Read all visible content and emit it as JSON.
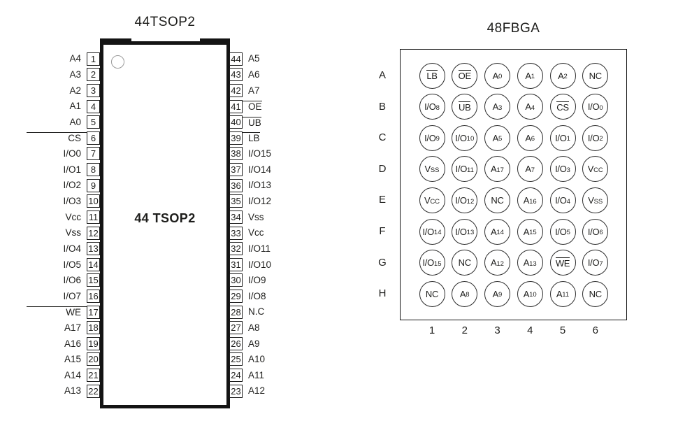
{
  "colors": {
    "line": "#141414",
    "text": "#1d1d1b",
    "pin1_indicator": "#9a9a9a",
    "background": "#ffffff"
  },
  "tsop": {
    "title": "44TSOP2",
    "center_label": "44 TSOP2",
    "left_pins": [
      {
        "num": "1",
        "label": "A4",
        "ov": false
      },
      {
        "num": "2",
        "label": "A3",
        "ov": false
      },
      {
        "num": "3",
        "label": "A2",
        "ov": false
      },
      {
        "num": "4",
        "label": "A1",
        "ov": false
      },
      {
        "num": "5",
        "label": "A0",
        "ov": false
      },
      {
        "num": "6",
        "label": "CS",
        "ov": true
      },
      {
        "num": "7",
        "label": "I/O0",
        "ov": false
      },
      {
        "num": "8",
        "label": "I/O1",
        "ov": false
      },
      {
        "num": "9",
        "label": "I/O2",
        "ov": false
      },
      {
        "num": "10",
        "label": "I/O3",
        "ov": false
      },
      {
        "num": "11",
        "label": "Vcc",
        "ov": false
      },
      {
        "num": "12",
        "label": "Vss",
        "ov": false
      },
      {
        "num": "13",
        "label": "I/O4",
        "ov": false
      },
      {
        "num": "14",
        "label": "I/O5",
        "ov": false
      },
      {
        "num": "15",
        "label": "I/O6",
        "ov": false
      },
      {
        "num": "16",
        "label": "I/O7",
        "ov": false
      },
      {
        "num": "17",
        "label": "WE",
        "ov": true
      },
      {
        "num": "18",
        "label": "A17",
        "ov": false
      },
      {
        "num": "19",
        "label": "A16",
        "ov": false
      },
      {
        "num": "20",
        "label": "A15",
        "ov": false
      },
      {
        "num": "21",
        "label": "A14",
        "ov": false
      },
      {
        "num": "22",
        "label": "A13",
        "ov": false
      }
    ],
    "right_pins": [
      {
        "num": "44",
        "label": "A5",
        "ov": false
      },
      {
        "num": "43",
        "label": "A6",
        "ov": false
      },
      {
        "num": "42",
        "label": "A7",
        "ov": false
      },
      {
        "num": "41",
        "label": "OE",
        "ov": true
      },
      {
        "num": "40",
        "label": "UB",
        "ov": true
      },
      {
        "num": "39",
        "label": "LB",
        "ov": true
      },
      {
        "num": "38",
        "label": "I/O15",
        "ov": false
      },
      {
        "num": "37",
        "label": "I/O14",
        "ov": false
      },
      {
        "num": "36",
        "label": "I/O13",
        "ov": false
      },
      {
        "num": "35",
        "label": "I/O12",
        "ov": false
      },
      {
        "num": "34",
        "label": "Vss",
        "ov": false
      },
      {
        "num": "33",
        "label": "Vcc",
        "ov": false
      },
      {
        "num": "32",
        "label": "I/O11",
        "ov": false
      },
      {
        "num": "31",
        "label": "I/O10",
        "ov": false
      },
      {
        "num": "30",
        "label": "I/O9",
        "ov": false
      },
      {
        "num": "29",
        "label": "I/O8",
        "ov": false
      },
      {
        "num": "28",
        "label": "N.C",
        "ov": false
      },
      {
        "num": "27",
        "label": "A8",
        "ov": false
      },
      {
        "num": "26",
        "label": "A9",
        "ov": false
      },
      {
        "num": "25",
        "label": "A10",
        "ov": false
      },
      {
        "num": "24",
        "label": "A11",
        "ov": false
      },
      {
        "num": "23",
        "label": "A12",
        "ov": false
      }
    ]
  },
  "fbga": {
    "title": "48FBGA",
    "rows": [
      "A",
      "B",
      "C",
      "D",
      "E",
      "F",
      "G",
      "H"
    ],
    "cols": [
      "1",
      "2",
      "3",
      "4",
      "5",
      "6"
    ],
    "balls": [
      [
        {
          "t": "LB",
          "o": true
        },
        {
          "t": "OE",
          "o": true
        },
        {
          "t": "A",
          "s": "0"
        },
        {
          "t": "A",
          "s": "1"
        },
        {
          "t": "A",
          "s": "2"
        },
        {
          "t": "NC"
        }
      ],
      [
        {
          "t": "I/O",
          "s": "8"
        },
        {
          "t": "UB",
          "o": true
        },
        {
          "t": "A",
          "s": "3"
        },
        {
          "t": "A",
          "s": "4"
        },
        {
          "t": "CS",
          "o": true
        },
        {
          "t": "I/O",
          "s": "0"
        }
      ],
      [
        {
          "t": "I/O",
          "s": "9"
        },
        {
          "t": "I/O",
          "s": "10"
        },
        {
          "t": "A",
          "s": "5"
        },
        {
          "t": "A",
          "s": "6"
        },
        {
          "t": "I/O",
          "s": "1"
        },
        {
          "t": "I/O",
          "s": "2"
        }
      ],
      [
        {
          "t": "V",
          "s": "SS"
        },
        {
          "t": "I/O",
          "s": "11"
        },
        {
          "t": "A",
          "s": "17"
        },
        {
          "t": "A",
          "s": "7"
        },
        {
          "t": "I/O",
          "s": "3"
        },
        {
          "t": "V",
          "s": "CC"
        }
      ],
      [
        {
          "t": "V",
          "s": "CC"
        },
        {
          "t": "I/O",
          "s": "12"
        },
        {
          "t": "NC"
        },
        {
          "t": "A",
          "s": "16"
        },
        {
          "t": "I/O",
          "s": "4"
        },
        {
          "t": "V",
          "s": "SS"
        }
      ],
      [
        {
          "t": "I/O",
          "s": "14"
        },
        {
          "t": "I/O",
          "s": "13"
        },
        {
          "t": "A",
          "s": "14"
        },
        {
          "t": "A",
          "s": "15"
        },
        {
          "t": "I/O",
          "s": "5"
        },
        {
          "t": "I/O",
          "s": "6"
        }
      ],
      [
        {
          "t": "I/O",
          "s": "15"
        },
        {
          "t": "NC"
        },
        {
          "t": "A",
          "s": "12"
        },
        {
          "t": "A",
          "s": "13"
        },
        {
          "t": "WE",
          "o": true
        },
        {
          "t": "I/O",
          "s": "7"
        }
      ],
      [
        {
          "t": "NC"
        },
        {
          "t": "A",
          "s": "8"
        },
        {
          "t": "A",
          "s": "9"
        },
        {
          "t": "A",
          "s": "10"
        },
        {
          "t": "A",
          "s": "11"
        },
        {
          "t": "NC"
        }
      ]
    ]
  }
}
